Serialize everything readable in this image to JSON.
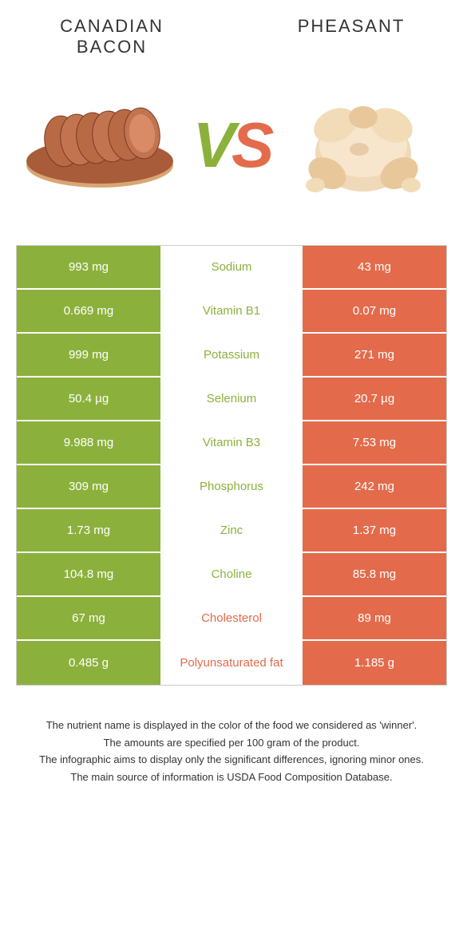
{
  "colors": {
    "left": "#8bb13c",
    "right": "#e36b4b",
    "text": "#333333",
    "cell_text": "#ffffff",
    "border": "#cccccc"
  },
  "header": {
    "left_title": "CANADIAN BACON",
    "right_title": "PHEASANT",
    "vs_v": "V",
    "vs_s": "S"
  },
  "rows": [
    {
      "left": "993 mg",
      "label": "Sodium",
      "right": "43 mg",
      "winner": "left"
    },
    {
      "left": "0.669 mg",
      "label": "Vitamin B1",
      "right": "0.07 mg",
      "winner": "left"
    },
    {
      "left": "999 mg",
      "label": "Potassium",
      "right": "271 mg",
      "winner": "left"
    },
    {
      "left": "50.4 µg",
      "label": "Selenium",
      "right": "20.7 µg",
      "winner": "left"
    },
    {
      "left": "9.988 mg",
      "label": "Vitamin B3",
      "right": "7.53 mg",
      "winner": "left"
    },
    {
      "left": "309 mg",
      "label": "Phosphorus",
      "right": "242 mg",
      "winner": "left"
    },
    {
      "left": "1.73 mg",
      "label": "Zinc",
      "right": "1.37 mg",
      "winner": "left"
    },
    {
      "left": "104.8 mg",
      "label": "Choline",
      "right": "85.8 mg",
      "winner": "left"
    },
    {
      "left": "67 mg",
      "label": "Cholesterol",
      "right": "89 mg",
      "winner": "right"
    },
    {
      "left": "0.485 g",
      "label": "Polyunsaturated fat",
      "right": "1.185 g",
      "winner": "right"
    }
  ],
  "footer": {
    "line1": "The nutrient name is displayed in the color of the food we considered as 'winner'.",
    "line2": "The amounts are specified per 100 gram of the product.",
    "line3": "The infographic aims to display only the significant differences, ignoring minor ones.",
    "line4": "The main source of information is USDA Food Composition Database."
  }
}
